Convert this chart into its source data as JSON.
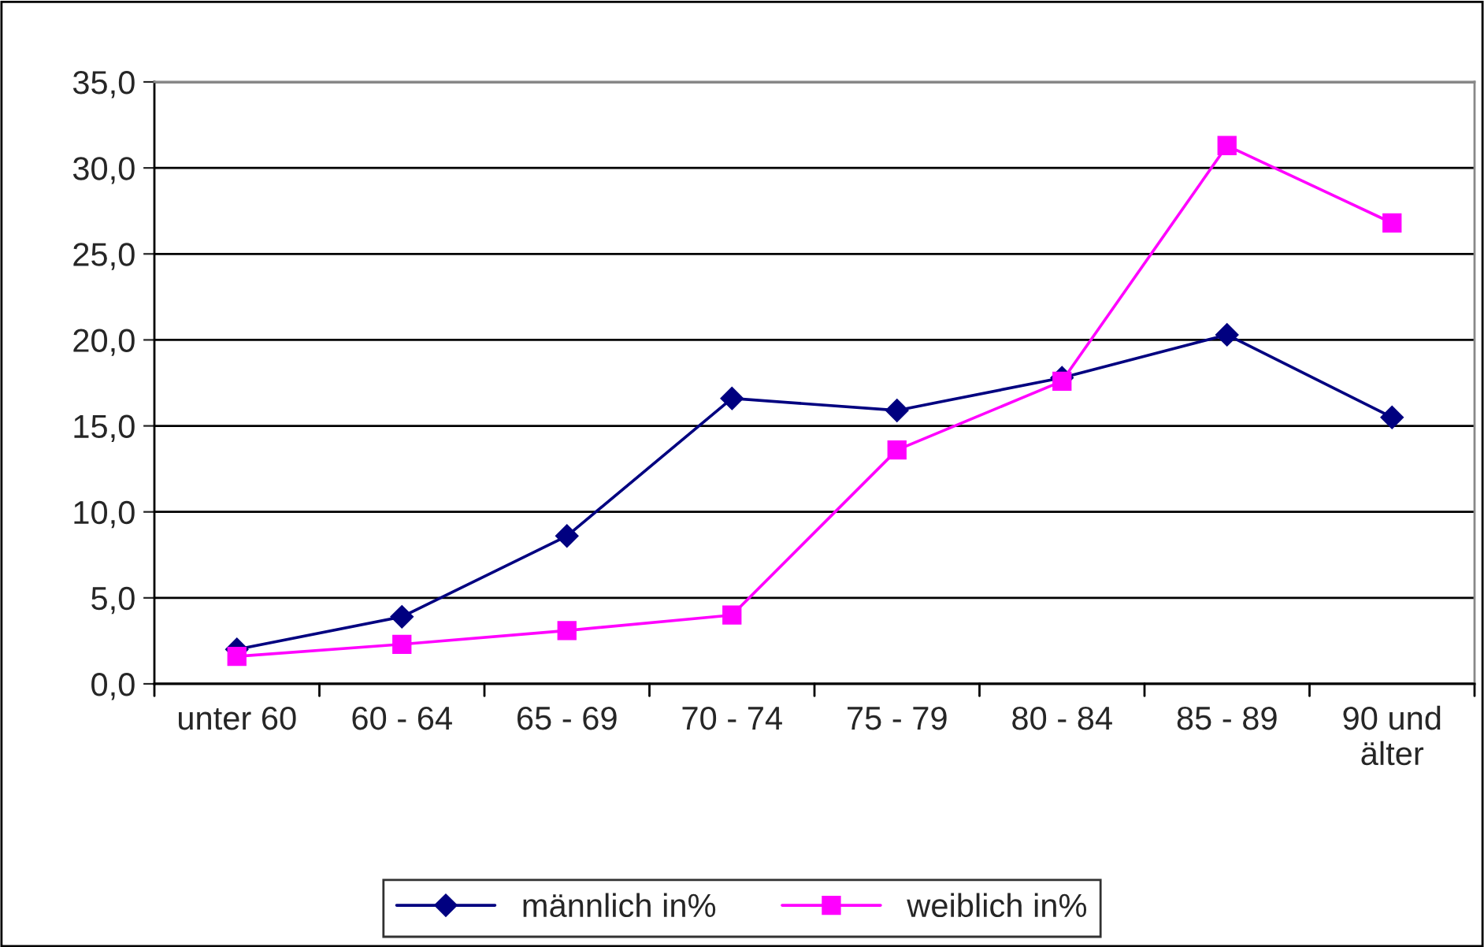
{
  "chart_data": {
    "type": "line",
    "categories": [
      "unter 60",
      "60 - 64",
      "65 - 69",
      "70 - 74",
      "75 - 79",
      "80 - 84",
      "85 - 89",
      "90 und\nälter"
    ],
    "series": [
      {
        "name": "männlich in%",
        "color": "#000080",
        "marker": "diamond",
        "values": [
          2.0,
          3.9,
          8.6,
          16.6,
          15.9,
          17.8,
          20.3,
          15.5
        ]
      },
      {
        "name": "weiblich in%",
        "color": "#ff00ff",
        "marker": "square",
        "values": [
          1.6,
          2.3,
          3.1,
          4.0,
          13.6,
          17.6,
          31.3,
          26.8
        ]
      }
    ],
    "ylim": [
      0,
      35
    ],
    "yticks": [
      {
        "value": 0,
        "label": "0,0"
      },
      {
        "value": 5,
        "label": "5,0"
      },
      {
        "value": 10,
        "label": "10,0"
      },
      {
        "value": 15,
        "label": "15,0"
      },
      {
        "value": 20,
        "label": "20,0"
      },
      {
        "value": 25,
        "label": "25,0"
      },
      {
        "value": 30,
        "label": "30,0"
      },
      {
        "value": 35,
        "label": "35,0"
      }
    ],
    "grid": "y",
    "legend": "bottom",
    "line_style": "solid"
  }
}
